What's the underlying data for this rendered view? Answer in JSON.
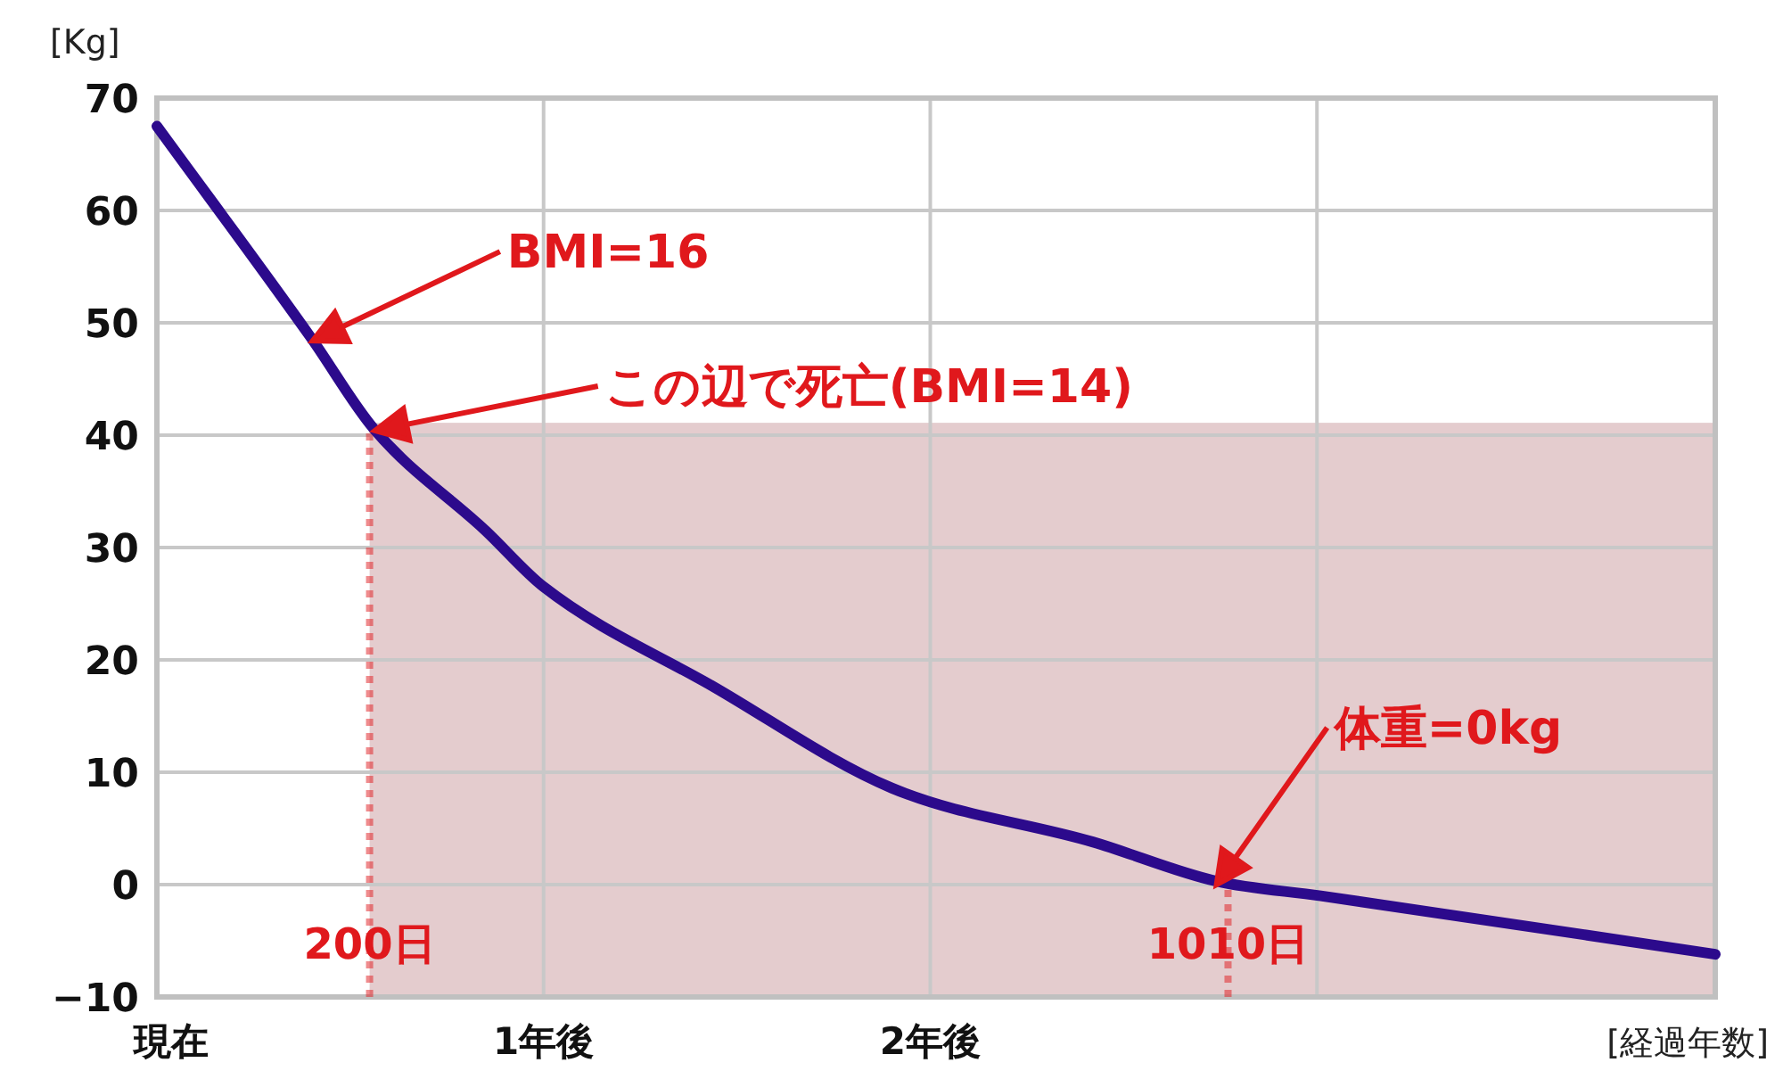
{
  "chart_data": {
    "type": "line",
    "ylabel": "[Kg]",
    "xlabel": "[経過年数]",
    "x": [
      0,
      0.4,
      0.56,
      0.85,
      1,
      1.44,
      1.9,
      2.42,
      2.74,
      3.01,
      4.03
    ],
    "series": [
      {
        "color": "#2c0a8c",
        "values": [
          67.5,
          48.6,
          40.6,
          31.5,
          26.5,
          17.6,
          8.6,
          3.8,
          0.3,
          -1.0,
          -6.2
        ]
      }
    ],
    "xlim": [
      0,
      4.03
    ],
    "xticks": [
      {
        "value": 0,
        "label": "現在"
      },
      {
        "value": 1,
        "label": "1年後"
      },
      {
        "value": 2,
        "label": "2年後"
      },
      {
        "value": 3,
        "label": null
      }
    ],
    "ylim": [
      -10,
      70
    ],
    "yticks": [
      -10,
      0,
      10,
      20,
      30,
      40,
      50,
      60,
      70
    ],
    "grid": true,
    "line_style": "solid",
    "marker": "none",
    "ref_lines": [
      {
        "axis": "x",
        "value": 0.55,
        "label": "200日",
        "color": "#e0181c",
        "line_style": "dotted"
      },
      {
        "axis": "x",
        "value": 2.77,
        "label": "1010日",
        "color": "#e0181c",
        "line_style": "dotted"
      }
    ],
    "bands": [
      {
        "axis": "x",
        "from": 0.55,
        "to": 4.03,
        "color": "#c48e92"
      }
    ],
    "annotations": [
      "BMI=16",
      "この辺で死亡(BMI=14)",
      "体重=0kg"
    ]
  }
}
